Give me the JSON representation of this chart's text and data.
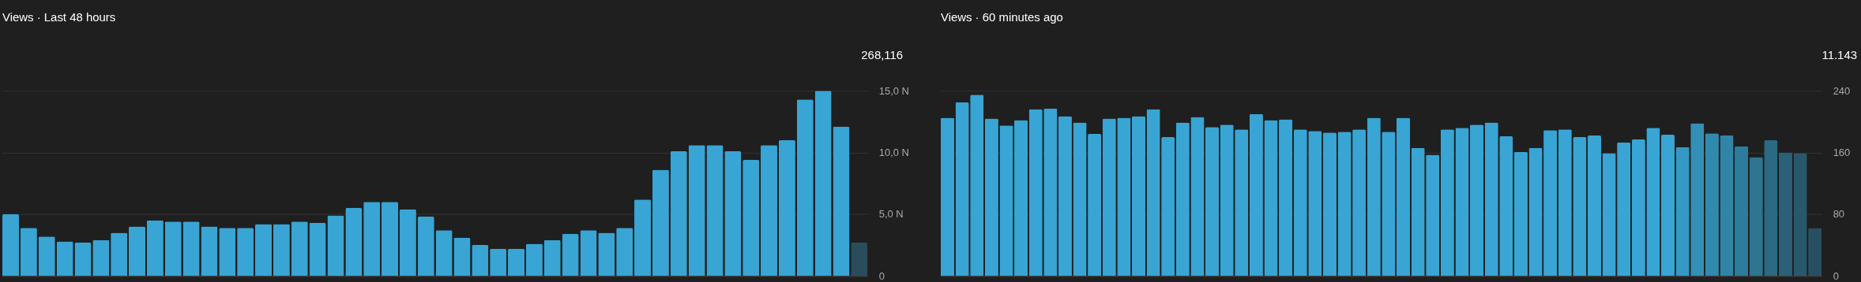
{
  "chart_data": [
    {
      "type": "bar",
      "title": "Views · Last 48 hours",
      "annotations": [
        "268,116"
      ],
      "categories": [
        null,
        null,
        null,
        null,
        null,
        null,
        null,
        null,
        null,
        null,
        null,
        null,
        null,
        null,
        null,
        null,
        null,
        null,
        null,
        null,
        null,
        null,
        null,
        null,
        null,
        null,
        null,
        null,
        null,
        null,
        null,
        null,
        null,
        null,
        null,
        null,
        null,
        null,
        null,
        null,
        null,
        null,
        null,
        null,
        null,
        null,
        null,
        null
      ],
      "values": [
        5.0,
        3.9,
        3.2,
        2.8,
        2.7,
        2.9,
        3.5,
        4.0,
        4.5,
        4.4,
        4.4,
        4.0,
        3.9,
        3.9,
        4.2,
        4.2,
        4.4,
        4.3,
        4.9,
        5.5,
        6.0,
        6.0,
        5.4,
        4.8,
        3.7,
        3.1,
        2.5,
        2.2,
        2.2,
        2.6,
        2.9,
        3.4,
        3.7,
        3.5,
        3.9,
        6.2,
        8.6,
        10.1,
        10.6,
        10.6,
        10.1,
        9.4,
        10.6,
        11.0,
        14.3,
        15.0,
        12.1,
        2.7
      ],
      "colors": [
        "#38a5d4",
        "#38a5d4",
        "#38a5d4",
        "#38a5d4",
        "#38a5d4",
        "#38a5d4",
        "#38a5d4",
        "#38a5d4",
        "#38a5d4",
        "#38a5d4",
        "#38a5d4",
        "#38a5d4",
        "#38a5d4",
        "#38a5d4",
        "#38a5d4",
        "#38a5d4",
        "#38a5d4",
        "#38a5d4",
        "#38a5d4",
        "#38a5d4",
        "#38a5d4",
        "#38a5d4",
        "#38a5d4",
        "#38a5d4",
        "#38a5d4",
        "#38a5d4",
        "#38a5d4",
        "#38a5d4",
        "#38a5d4",
        "#38a5d4",
        "#38a5d4",
        "#38a5d4",
        "#38a5d4",
        "#38a5d4",
        "#38a5d4",
        "#38a5d4",
        "#38a5d4",
        "#38a5d4",
        "#38a5d4",
        "#38a5d4",
        "#38a5d4",
        "#38a5d4",
        "#38a5d4",
        "#38a5d4",
        "#38a5d4",
        "#38a5d4",
        "#38a5d4",
        "#2a4d5e"
      ],
      "ylim": [
        0,
        15
      ],
      "yticks": [
        0,
        {
          "value": 5,
          "label": "5,0 N"
        },
        {
          "value": 10,
          "label": "10,0 N"
        },
        {
          "value": 15,
          "label": "15,0 N"
        }
      ],
      "grid": "y",
      "tick_labels": "y"
    },
    {
      "type": "bar",
      "title": "Views · 60 minutes ago",
      "annotations": [
        "11.143"
      ],
      "categories": [
        null,
        null,
        null,
        null,
        null,
        null,
        null,
        null,
        null,
        null,
        null,
        null,
        null,
        null,
        null,
        null,
        null,
        null,
        null,
        null,
        null,
        null,
        null,
        null,
        null,
        null,
        null,
        null,
        null,
        null,
        null,
        null,
        null,
        null,
        null,
        null,
        null,
        null,
        null,
        null,
        null,
        null,
        null,
        null,
        null,
        null,
        null,
        null,
        null,
        null,
        null,
        null,
        null,
        null,
        null,
        null,
        null,
        null,
        null,
        null
      ],
      "values": [
        205,
        225,
        235,
        204,
        195,
        202,
        216,
        217,
        207,
        199,
        184,
        204,
        205,
        207,
        216,
        180,
        199,
        206,
        193,
        196,
        190,
        210,
        202,
        203,
        190,
        188,
        186,
        187,
        190,
        205,
        187,
        205,
        166,
        157,
        190,
        192,
        196,
        199,
        181,
        161,
        166,
        189,
        190,
        180,
        182,
        159,
        173,
        177,
        192,
        183,
        167,
        198,
        185,
        182,
        168,
        154,
        176,
        160,
        159,
        62
      ],
      "colors": [
        "#38a5d4",
        "#38a5d4",
        "#38a5d4",
        "#38a5d4",
        "#38a5d4",
        "#38a5d4",
        "#38a5d4",
        "#38a5d4",
        "#38a5d4",
        "#38a5d4",
        "#38a5d4",
        "#38a5d4",
        "#38a5d4",
        "#38a5d4",
        "#38a5d4",
        "#38a5d4",
        "#38a5d4",
        "#38a5d4",
        "#38a5d4",
        "#38a5d4",
        "#38a5d4",
        "#38a5d4",
        "#38a5d4",
        "#38a5d4",
        "#38a5d4",
        "#38a5d4",
        "#38a5d4",
        "#38a5d4",
        "#38a5d4",
        "#38a5d4",
        "#38a5d4",
        "#38a5d4",
        "#38a5d4",
        "#38a5d4",
        "#38a5d4",
        "#38a5d4",
        "#38a5d4",
        "#38a5d4",
        "#38a5d4",
        "#38a5d4",
        "#38a5d4",
        "#38a5d4",
        "#38a5d4",
        "#38a5d4",
        "#38a5d4",
        "#38a5d4",
        "#38a5d4",
        "#38a5d4",
        "#38a5d4",
        "#38a5d4",
        "#3599c5",
        "#3290b6",
        "#318aae",
        "#3085a6",
        "#2e7c9b",
        "#2d7591",
        "#2b6a82",
        "#2a6078",
        "#29586d",
        "#284f61"
      ],
      "ylim": [
        0,
        240
      ],
      "yticks": [
        0,
        80,
        160,
        240
      ],
      "grid": "y",
      "tick_labels": "y"
    }
  ]
}
